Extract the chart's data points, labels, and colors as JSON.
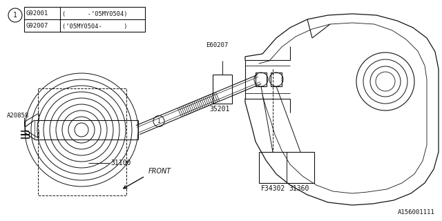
{
  "bg_color": "#ffffff",
  "line_color": "#111111",
  "legend_rows": [
    [
      "G92001",
      "(      -’05MY0504)"
    ],
    [
      "G92007",
      "(’05MY0504-      )"
    ]
  ],
  "diagram_id": "A156001111",
  "front_label": "FRONT"
}
